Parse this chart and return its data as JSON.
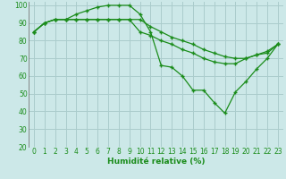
{
  "title": "",
  "xlabel": "Humidité relative (%)",
  "ylabel": "",
  "bg_color": "#cce8e8",
  "grid_color": "#aacccc",
  "line_color": "#1a8c1a",
  "marker": "+",
  "ylim": [
    20,
    102
  ],
  "xlim": [
    -0.5,
    23.5
  ],
  "yticks": [
    20,
    30,
    40,
    50,
    60,
    70,
    80,
    90,
    100
  ],
  "xticks": [
    0,
    1,
    2,
    3,
    4,
    5,
    6,
    7,
    8,
    9,
    10,
    11,
    12,
    13,
    14,
    15,
    16,
    17,
    18,
    19,
    20,
    21,
    22,
    23
  ],
  "lines": [
    [
      85,
      90,
      92,
      92,
      95,
      97,
      99,
      100,
      100,
      100,
      95,
      85,
      66,
      65,
      60,
      52,
      52,
      45,
      39,
      51,
      57,
      64,
      70,
      78
    ],
    [
      85,
      90,
      92,
      92,
      92,
      92,
      92,
      92,
      92,
      92,
      85,
      83,
      80,
      78,
      75,
      73,
      70,
      68,
      67,
      67,
      70,
      72,
      73,
      78
    ],
    [
      85,
      90,
      92,
      92,
      92,
      92,
      92,
      92,
      92,
      92,
      92,
      88,
      85,
      82,
      80,
      78,
      75,
      73,
      71,
      70,
      70,
      72,
      74,
      78
    ]
  ],
  "tick_fontsize": 5.5,
  "xlabel_fontsize": 6.5,
  "linewidth": 0.9,
  "markersize": 3.5,
  "markeredgewidth": 1.0
}
